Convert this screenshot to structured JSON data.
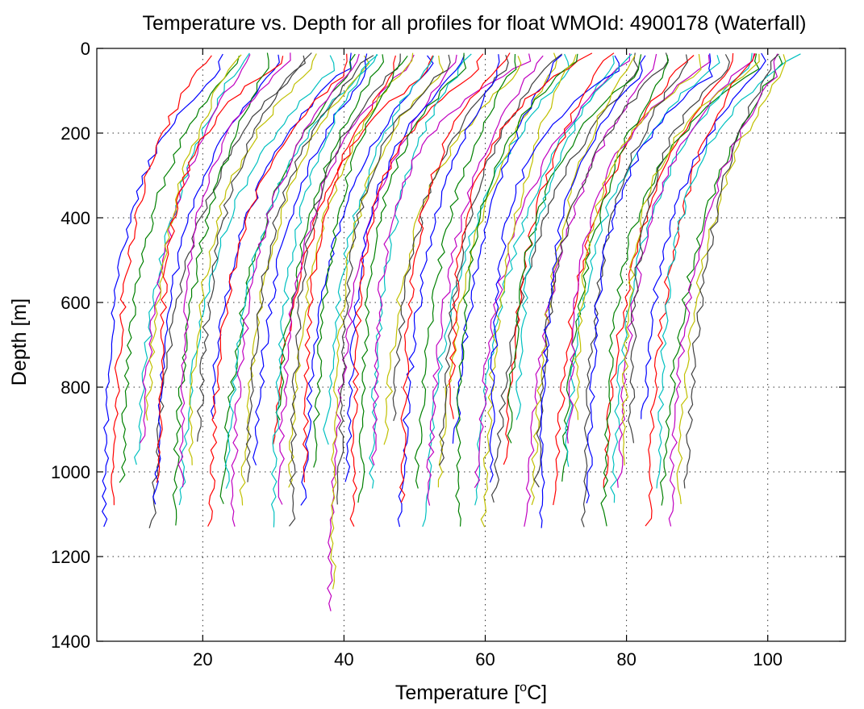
{
  "chart_data": {
    "type": "line",
    "title": "Temperature vs. Depth for all profiles for float WMOId: 4900178 (Waterfall)",
    "xlabel": "Temperature [°C]",
    "xlabel_parts": {
      "before": "Temperature [",
      "sup": "o",
      "after": "C]"
    },
    "ylabel": "Depth [m]",
    "xlim": [
      5,
      111
    ],
    "ylim": [
      1400,
      0
    ],
    "y_reversed": true,
    "xticks": [
      20,
      40,
      60,
      80,
      100
    ],
    "yticks": [
      0,
      200,
      400,
      600,
      800,
      1000,
      1200,
      1400
    ],
    "grid": true,
    "description_note": "Waterfall plot: each successive profile shifted right by a constant offset",
    "colors": [
      "#0000ff",
      "#ff0000",
      "#008000",
      "#00c0c0",
      "#c000c0",
      "#c0c000",
      "#404040"
    ],
    "profile_params": {
      "count": 84,
      "first_bottom_temp": 6.0,
      "offset_per_profile": 0.98,
      "surface_excess_range": [
        14,
        23
      ],
      "thermocline_depth_range": [
        170,
        420
      ],
      "bottom_depth_pattern": [
        1140,
        1090,
        1040,
        990,
        940,
        890,
        1140,
        1090,
        1040
      ]
    }
  }
}
